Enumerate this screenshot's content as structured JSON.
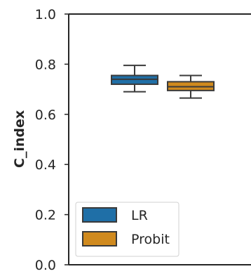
{
  "chart_data": {
    "type": "box",
    "ylabel": "C_index",
    "ylim": [
      0.0,
      1.0
    ],
    "yticks": [
      "0.0",
      "0.2",
      "0.4",
      "0.6",
      "0.8",
      "1.0"
    ],
    "grid": false,
    "legend_position": "lower-left",
    "series": [
      {
        "name": "LR",
        "color": "#1f6fa7",
        "whisker_low": 0.69,
        "q1": 0.72,
        "median": 0.74,
        "q3": 0.755,
        "whisker_high": 0.795
      },
      {
        "name": "Probit",
        "color": "#d08a1e",
        "whisker_low": 0.665,
        "q1": 0.695,
        "median": 0.71,
        "q3": 0.73,
        "whisker_high": 0.755
      }
    ]
  }
}
